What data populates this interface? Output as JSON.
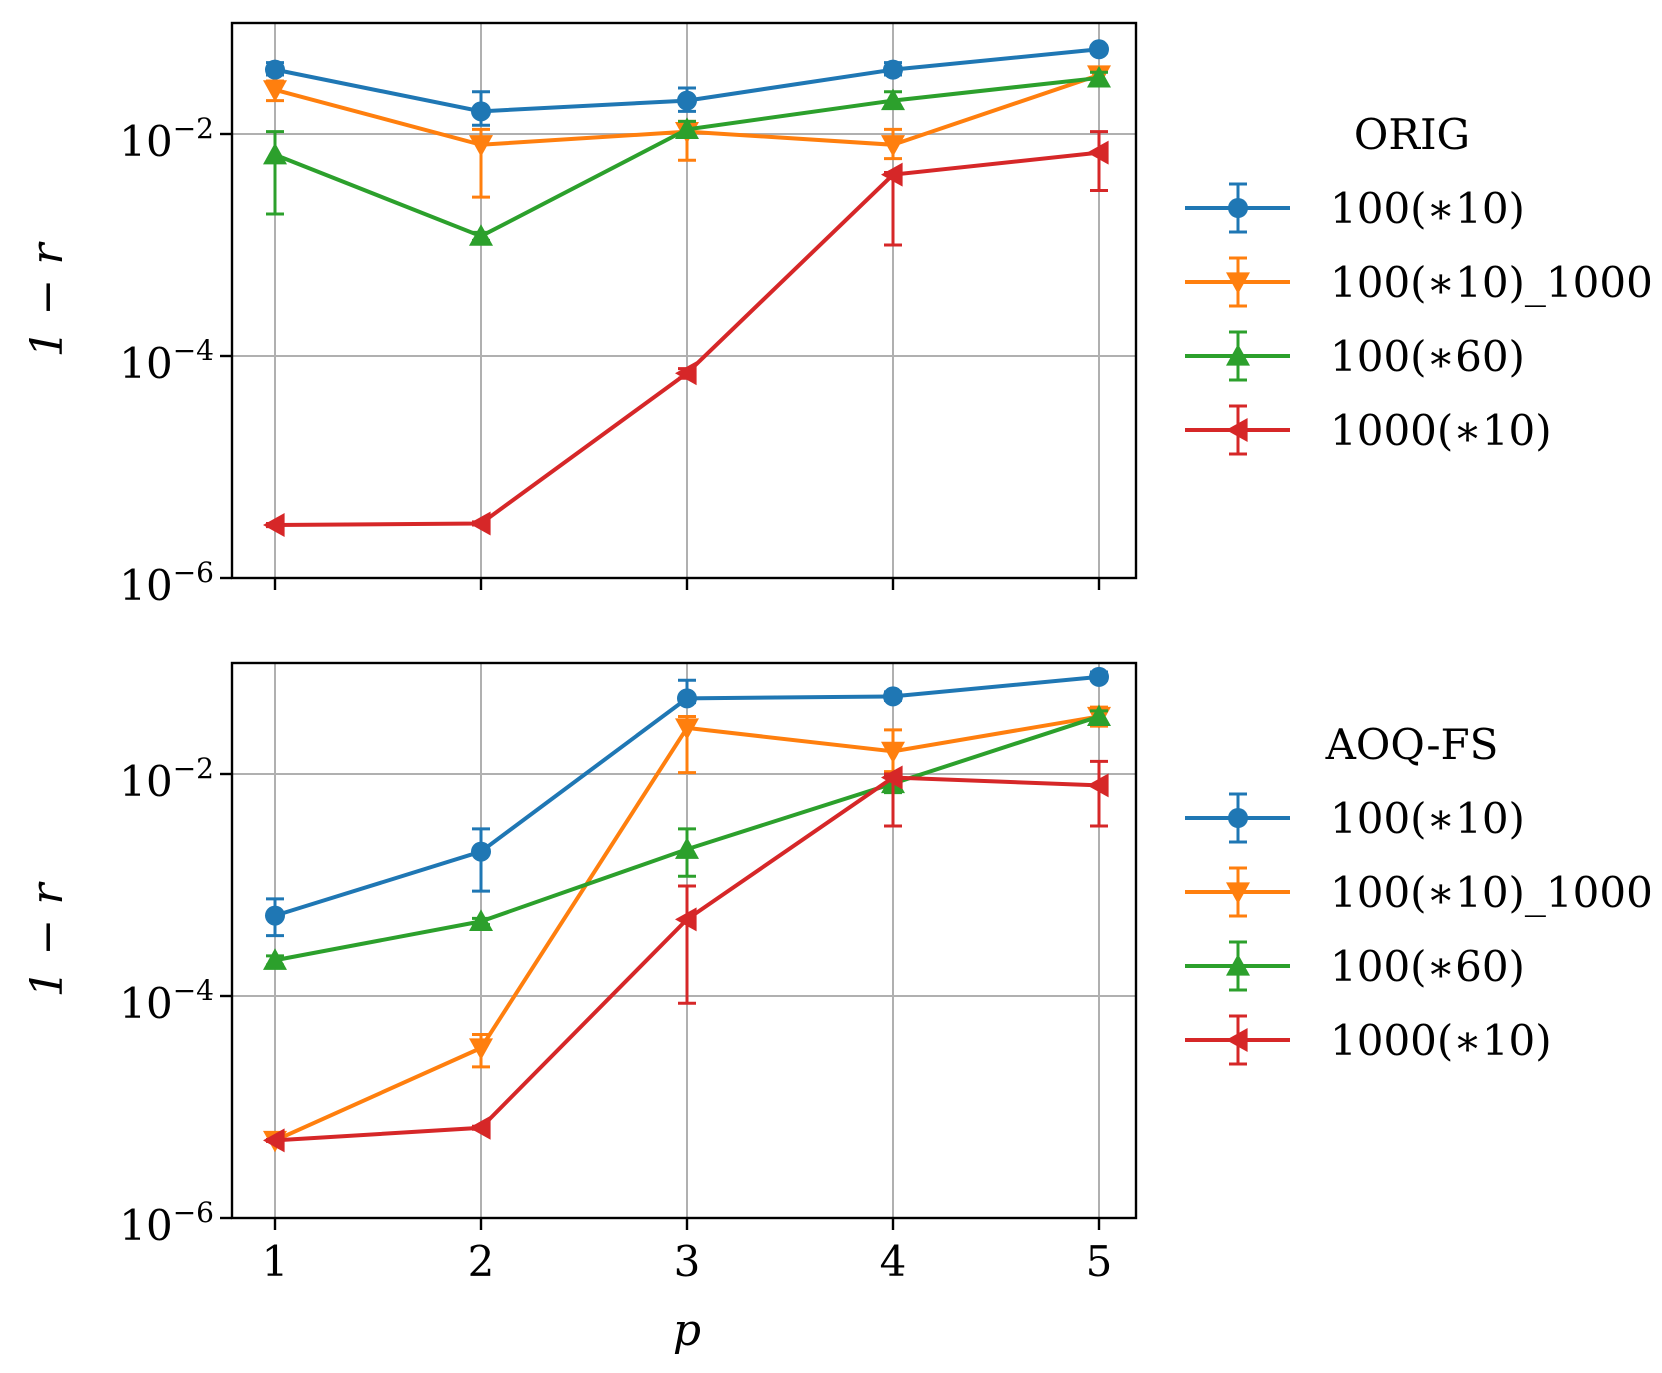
{
  "colors": {
    "blue": "#1f77b4",
    "orange": "#ff7f0e",
    "green": "#2ca02c",
    "red": "#d62728",
    "grid": "#b0b0b0"
  },
  "chart_data": [
    {
      "type": "line",
      "title": "",
      "xlabel": "",
      "ylabel": "1 − r",
      "yscale": "log",
      "ylim": [
        1e-06,
        0.1
      ],
      "x": [
        1,
        2,
        3,
        4,
        5
      ],
      "x_tick_labels": [],
      "y_ticks": [
        {
          "base": "10",
          "exp": "−6",
          "value": 1e-06
        },
        {
          "base": "10",
          "exp": "−4",
          "value": 0.0001
        },
        {
          "base": "10",
          "exp": "−2",
          "value": 0.01
        }
      ],
      "grid": true,
      "legend": {
        "title": "ORIG",
        "placement": "outside-right"
      },
      "series": [
        {
          "name": "100(∗10)",
          "color": "blue",
          "marker": "circle",
          "values": [
            0.038,
            0.016,
            0.02,
            0.038,
            0.058
          ],
          "err_low": [
            0.034,
            0.012,
            0.016,
            0.034,
            0.054
          ],
          "err_high": [
            0.044,
            0.024,
            0.026,
            0.044,
            0.062
          ]
        },
        {
          "name": "100(∗10)_1000",
          "color": "orange",
          "marker": "triangle-down",
          "values": [
            0.025,
            0.008,
            0.0105,
            0.008,
            0.034
          ],
          "err_low": [
            0.02,
            0.0027,
            0.0058,
            0.006,
            0.028
          ],
          "err_high": [
            0.03,
            0.011,
            0.013,
            0.011,
            0.04
          ]
        },
        {
          "name": "100(∗60)",
          "color": "green",
          "marker": "triangle-up",
          "values": [
            0.0065,
            0.0012,
            0.011,
            0.02,
            0.032
          ],
          "err_low": [
            0.0019,
            0.0011,
            0.0095,
            0.017,
            0.028
          ],
          "err_high": [
            0.0105,
            0.0013,
            0.013,
            0.024,
            0.036
          ]
        },
        {
          "name": "1000(∗10)",
          "color": "red",
          "marker": "triangle-left",
          "values": [
            3e-06,
            3.1e-06,
            7e-05,
            0.0043,
            0.0068
          ],
          "err_low": [
            2.9e-06,
            3e-06,
            6.3e-05,
            0.001,
            0.0031
          ],
          "err_high": [
            3.1e-06,
            3.2e-06,
            7.7e-05,
            0.0045,
            0.0105
          ]
        }
      ]
    },
    {
      "type": "line",
      "title": "",
      "xlabel": "p",
      "ylabel": "1 − r",
      "yscale": "log",
      "ylim": [
        1e-06,
        0.1
      ],
      "x": [
        1,
        2,
        3,
        4,
        5
      ],
      "x_tick_labels": [
        "1",
        "2",
        "3",
        "4",
        "5"
      ],
      "y_ticks": [
        {
          "base": "10",
          "exp": "−6",
          "value": 1e-06
        },
        {
          "base": "10",
          "exp": "−4",
          "value": 0.0001
        },
        {
          "base": "10",
          "exp": "−2",
          "value": 0.01
        }
      ],
      "grid": true,
      "legend": {
        "title": "AOQ-FS",
        "placement": "outside-right"
      },
      "series": [
        {
          "name": "100(∗10)",
          "color": "blue",
          "marker": "circle",
          "values": [
            0.00053,
            0.002,
            0.048,
            0.05,
            0.075
          ],
          "err_low": [
            0.00035,
            0.00088,
            0.044,
            0.046,
            0.07
          ],
          "err_high": [
            0.00075,
            0.0032,
            0.07,
            0.055,
            0.083
          ]
        },
        {
          "name": "100(∗10)_1000",
          "color": "orange",
          "marker": "triangle-down",
          "values": [
            5e-06,
            3.4e-05,
            0.026,
            0.016,
            0.033
          ],
          "err_low": [
            4.9e-06,
            2.3e-05,
            0.0103,
            0.0105,
            0.027
          ],
          "err_high": [
            5.1e-06,
            4.5e-05,
            0.033,
            0.025,
            0.04
          ]
        },
        {
          "name": "100(∗60)",
          "color": "green",
          "marker": "triangle-up",
          "values": [
            0.00021,
            0.00047,
            0.0021,
            0.0082,
            0.033
          ],
          "err_low": [
            0.00019,
            0.00044,
            0.0012,
            0.0068,
            0.029
          ],
          "err_high": [
            0.00023,
            0.0005,
            0.0032,
            0.0098,
            0.037
          ]
        },
        {
          "name": "1000(∗10)",
          "color": "red",
          "marker": "triangle-left",
          "values": [
            5e-06,
            6.5e-06,
            0.00049,
            0.0093,
            0.0079
          ],
          "err_low": [
            4.9e-06,
            6.3e-06,
            8.6e-05,
            0.0034,
            0.0034
          ],
          "err_high": [
            5.1e-06,
            6.7e-06,
            0.00098,
            0.01,
            0.013
          ]
        }
      ]
    }
  ]
}
